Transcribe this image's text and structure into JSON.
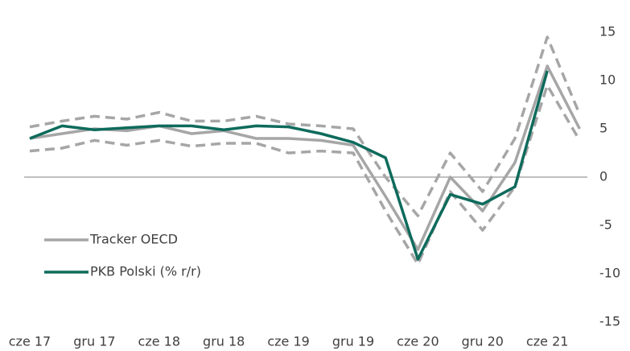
{
  "chart_data": {
    "type": "line",
    "categories": [
      "cze 17",
      null,
      "gru 17",
      null,
      "cze 18",
      null,
      "gru 18",
      null,
      "cze 19",
      null,
      "gru 19",
      null,
      "cze 20",
      null,
      "gru 20",
      null,
      "cze 21",
      null
    ],
    "series": [
      {
        "color": "#a6a6a6",
        "dashed": true,
        "values": [
          5.2,
          5.8,
          6.3,
          6.0,
          6.7,
          5.8,
          5.8,
          6.3,
          5.5,
          5.3,
          5.0,
          0.0,
          -4.0,
          2.5,
          -1.5,
          4.0,
          14.5,
          6.5
        ]
      },
      {
        "color": "#a6a6a6",
        "dashed": true,
        "values": [
          2.7,
          3.0,
          3.8,
          3.3,
          3.8,
          3.2,
          3.5,
          3.5,
          2.5,
          2.7,
          2.5,
          -3.5,
          -9.0,
          -1.5,
          -5.5,
          -1.0,
          9.5,
          3.8
        ]
      },
      {
        "name": "Tracker OECD",
        "color": "#a6a6a6",
        "values": [
          4.0,
          4.5,
          5.0,
          4.8,
          5.3,
          4.5,
          4.8,
          4.0,
          4.0,
          3.8,
          3.3,
          -2.0,
          -7.5,
          0.0,
          -3.5,
          1.5,
          11.5,
          5.0
        ]
      },
      {
        "name": "PKB Polski (% r/r)",
        "color": "#0e6b5c",
        "values": [
          4.0,
          5.3,
          4.9,
          5.1,
          5.3,
          5.3,
          4.9,
          5.3,
          5.2,
          4.5,
          3.6,
          2.0,
          -8.5,
          -1.8,
          -2.8,
          -1.0,
          11.0,
          null
        ]
      }
    ],
    "ylim": [
      -15,
      15
    ],
    "yticks": [
      15,
      10,
      5,
      0,
      -5,
      -10,
      -15
    ],
    "yaxis_side": "right"
  }
}
